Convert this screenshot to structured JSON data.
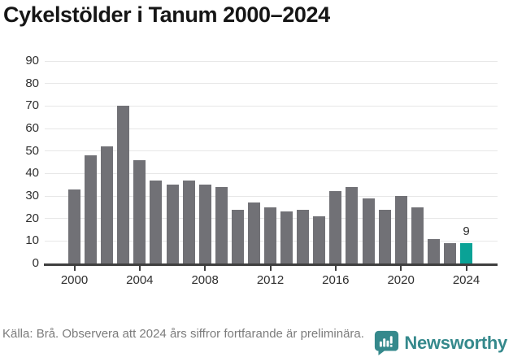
{
  "title": "Cykelstölder i Tanum 2000–2024",
  "chart_data": {
    "type": "bar",
    "title": "Cykelstölder i Tanum 2000–2024",
    "categories": [
      2000,
      2001,
      2002,
      2003,
      2004,
      2005,
      2006,
      2007,
      2008,
      2009,
      2010,
      2011,
      2012,
      2013,
      2014,
      2015,
      2016,
      2017,
      2018,
      2019,
      2020,
      2021,
      2022,
      2023,
      2024
    ],
    "values": [
      33,
      48,
      52,
      70,
      46,
      37,
      35,
      37,
      35,
      34,
      24,
      27,
      25,
      23,
      24,
      21,
      32,
      34,
      29,
      24,
      30,
      25,
      11,
      9,
      9
    ],
    "highlight": {
      "index": 24,
      "label": "9",
      "year": 2024
    },
    "xlabel": "",
    "ylabel": "",
    "ylim": [
      0,
      90
    ],
    "yticks": [
      0,
      10,
      20,
      30,
      40,
      50,
      60,
      70,
      80,
      90
    ],
    "xticks": [
      2000,
      2004,
      2008,
      2012,
      2016,
      2020,
      2024
    ],
    "grid": true,
    "legend": "none",
    "bar_color": "#717176",
    "highlight_color": "#0aa296",
    "gridline_color": "#e7e7e7",
    "axis_color": "#3f3f3f"
  },
  "footer": {
    "source_note": "Källa: Brå. Observera att 2024 års siffror fortfarande är preliminära.",
    "brand_name": "Newsworthy",
    "brand_color": "#35898c"
  }
}
